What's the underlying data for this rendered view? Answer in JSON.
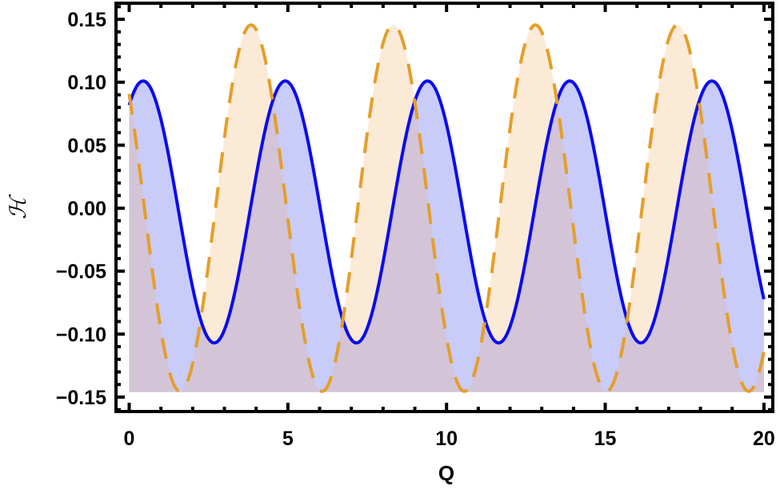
{
  "chart": {
    "xlabel": "Q",
    "ylabel": "ℋ",
    "x_tick_labels": [
      "0",
      "5",
      "10",
      "15",
      "20"
    ],
    "y_tick_labels": [
      "0.15",
      "0.10",
      "0.05",
      "0.00",
      "−0.05",
      "−0.10",
      "−0.15"
    ]
  },
  "colors": {
    "series1_line": "#0b0bf0",
    "series1_fill": "#c9cbf8",
    "series2_line": "#e39f2a",
    "series2_fill": "#fbead6",
    "overlap_fill": "#d3c4d7",
    "frame": "#000000",
    "background": "#ffffff"
  },
  "chart_data": {
    "type": "area",
    "title": "",
    "xlabel": "Q",
    "ylabel": "ℋ",
    "xlim": [
      0,
      20
    ],
    "ylim": [
      -0.15,
      0.15
    ],
    "x_ticks": [
      0,
      5,
      10,
      15,
      20
    ],
    "y_ticks": [
      -0.15,
      -0.1,
      -0.05,
      0.0,
      0.05,
      0.1,
      0.15
    ],
    "fill_baseline": -0.146,
    "grid": false,
    "legend": null,
    "x": [
      0,
      1,
      2,
      3,
      4,
      5,
      6,
      7,
      8,
      9,
      10,
      11,
      12,
      13,
      14,
      15,
      16,
      17,
      18,
      19,
      20
    ],
    "series": [
      {
        "name": "solid blue",
        "style": "solid",
        "model": {
          "offset": -0.003,
          "amplitude": 0.104,
          "period": 4.48,
          "peak_at": 0.44
        },
        "values": [
          0.082,
          0.071,
          -0.063,
          -0.097,
          0.026,
          0.1,
          0.003,
          -0.104,
          -0.04,
          0.086,
          0.064,
          -0.068,
          -0.093,
          0.032,
          0.099,
          -0.005,
          -0.106,
          -0.033,
          0.088,
          0.062,
          -0.072
        ]
      },
      {
        "name": "dashed orange",
        "style": "dashed",
        "model": {
          "offset": 0.0,
          "amplitude": 0.1455,
          "period": 4.48,
          "peak_at": 3.84
        },
        "values": [
          0.091,
          -0.097,
          -0.123,
          0.056,
          0.142,
          -0.008,
          -0.145,
          -0.04,
          0.131,
          0.084,
          -0.103,
          -0.117,
          0.067,
          0.14,
          -0.02,
          -0.145,
          -0.029,
          0.135,
          0.075,
          -0.11,
          -0.113
        ]
      }
    ]
  }
}
